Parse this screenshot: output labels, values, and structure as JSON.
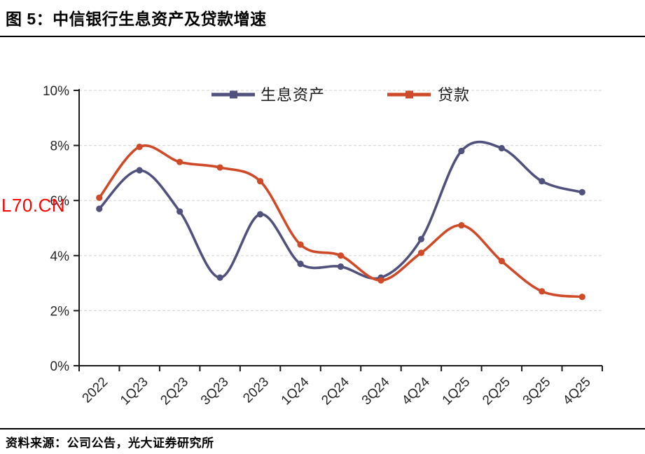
{
  "header": {
    "title": "图 5：中信银行生息资产及贷款增速"
  },
  "watermark": {
    "text": "L70.CN",
    "color": "#FF0000"
  },
  "footer": {
    "source": "资料来源：公司公告，光大证券研究所"
  },
  "chart_data": {
    "type": "line",
    "title": "中信银行生息资产及贷款增速",
    "categories": [
      "2022",
      "1Q23",
      "2Q23",
      "3Q23",
      "2023",
      "1Q24",
      "2Q24",
      "3Q24",
      "4Q24",
      "1Q25",
      "2Q25",
      "3Q25",
      "4Q25"
    ],
    "series": [
      {
        "name": "生息资产",
        "color": "#51517D",
        "values": [
          5.7,
          7.1,
          5.6,
          3.2,
          5.5,
          3.7,
          3.6,
          3.2,
          4.6,
          7.8,
          7.9,
          6.7,
          6.3
        ]
      },
      {
        "name": "贷款",
        "color": "#CE4A28",
        "values": [
          6.1,
          7.95,
          7.4,
          7.2,
          6.7,
          4.4,
          4.0,
          3.1,
          4.1,
          5.1,
          3.8,
          2.7,
          2.5
        ]
      }
    ],
    "unit": "%",
    "xlabel": "",
    "ylabel": "",
    "ylim": [
      0,
      10
    ],
    "y_ticks": [
      {
        "value": 0,
        "label": "0%"
      },
      {
        "value": 2,
        "label": "2%"
      },
      {
        "value": 4,
        "label": "4%"
      },
      {
        "value": 6,
        "label": "6%"
      },
      {
        "value": 8,
        "label": "8%"
      },
      {
        "value": 10,
        "label": "10%"
      }
    ],
    "grid": "horizontal-dashed",
    "grid_color": "#D9D9D9",
    "axis_color": "#1A1A1A",
    "tick_label_color": "#262626",
    "legend_position": "top-center",
    "line_style": "smooth-with-markers"
  }
}
